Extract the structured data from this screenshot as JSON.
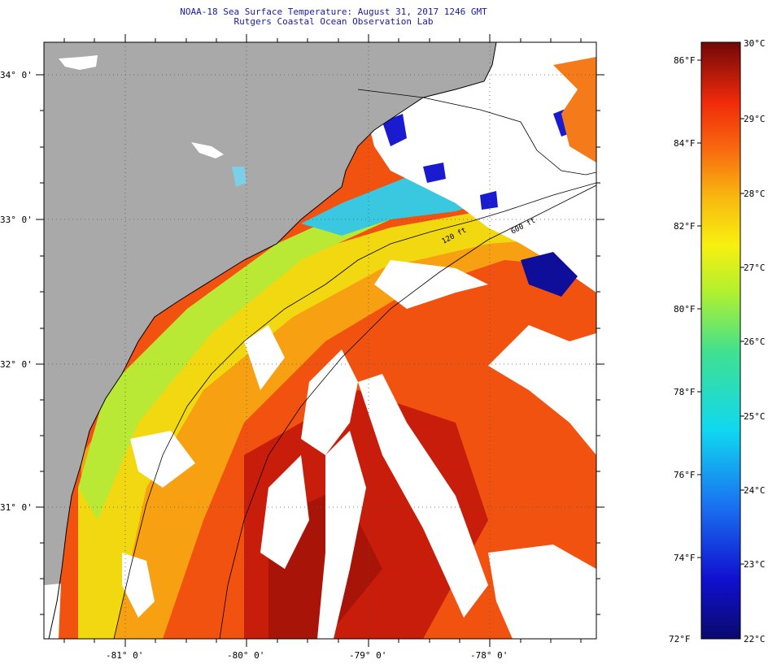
{
  "header": {
    "title": "NOAA-18 Sea Surface Temperature:  August 31, 2017 1246 GMT",
    "subtitle": "Rutgers Coastal Ocean Observation Lab"
  },
  "map": {
    "lat_labels": [
      "34° 0'",
      "33° 0'",
      "32° 0'",
      "31° 0'"
    ],
    "lon_labels": [
      "-81° 0'",
      "-80° 0'",
      "-79° 0'",
      "-78° 0'"
    ],
    "isobath_labels": [
      "120 ft",
      "600 ft"
    ],
    "colors": {
      "land": "#a9a9a9",
      "cloud": "#ffffff",
      "coast": "#000000"
    }
  },
  "colorbar": {
    "celsius_labels": [
      "30°C",
      "29°C",
      "28°C",
      "27°C",
      "26°C",
      "25°C",
      "24°C",
      "23°C",
      "22°C"
    ],
    "fahrenheit_labels": [
      "86°F",
      "84°F",
      "82°F",
      "80°F",
      "78°F",
      "76°F",
      "74°F",
      "72°F"
    ],
    "range_c": [
      22,
      30
    ],
    "range_f": [
      72,
      86
    ]
  }
}
